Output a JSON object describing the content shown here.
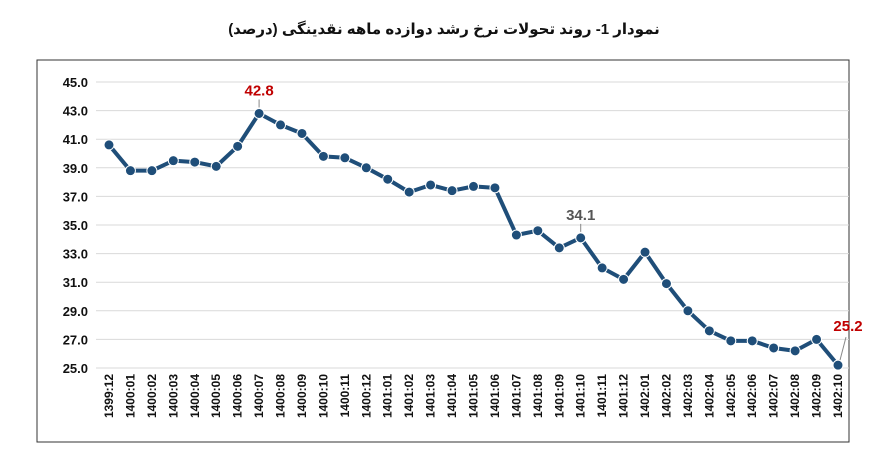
{
  "chart_data": {
    "type": "line",
    "title": "نمودار 1- روند تحولات نرخ رشد دوازده ماهه نقدینگی (درصد)",
    "xlabel": "",
    "ylabel": "",
    "ylim": [
      25.0,
      45.0
    ],
    "y_ticks": [
      "25.0",
      "27.0",
      "29.0",
      "31.0",
      "33.0",
      "35.0",
      "37.0",
      "39.0",
      "41.0",
      "43.0",
      "45.0"
    ],
    "grid": true,
    "categories": [
      "1399:12",
      "1400:01",
      "1400:02",
      "1400:03",
      "1400:04",
      "1400:05",
      "1400:06",
      "1400:07",
      "1400:08",
      "1400:09",
      "1400:10",
      "1400:11",
      "1400:12",
      "1401:01",
      "1401:02",
      "1401:03",
      "1401:04",
      "1401:05",
      "1401:06",
      "1401:07",
      "1401:08",
      "1401:09",
      "1401:10",
      "1401:11",
      "1401:12",
      "1402:01",
      "1402:02",
      "1402:03",
      "1402:04",
      "1402:05",
      "1402:06",
      "1402:07",
      "1402:08",
      "1402:09",
      "1402:10"
    ],
    "series": [
      {
        "color": "#1f4e79",
        "values": [
          40.6,
          38.8,
          38.8,
          39.5,
          39.4,
          39.1,
          40.5,
          42.8,
          42.0,
          41.4,
          39.8,
          39.7,
          39.0,
          38.2,
          37.3,
          37.8,
          37.4,
          37.7,
          37.6,
          34.3,
          34.6,
          33.4,
          34.1,
          32.0,
          31.2,
          33.1,
          30.9,
          29.0,
          27.6,
          26.9,
          26.9,
          26.4,
          26.2,
          27.0,
          25.2
        ]
      }
    ],
    "annotations": [
      {
        "index": 7,
        "text": "42.8",
        "color": "#c00000"
      },
      {
        "index": 22,
        "text": "34.1",
        "color": "#555555"
      },
      {
        "index": 34,
        "text": "25.2",
        "color": "#c00000"
      }
    ]
  }
}
